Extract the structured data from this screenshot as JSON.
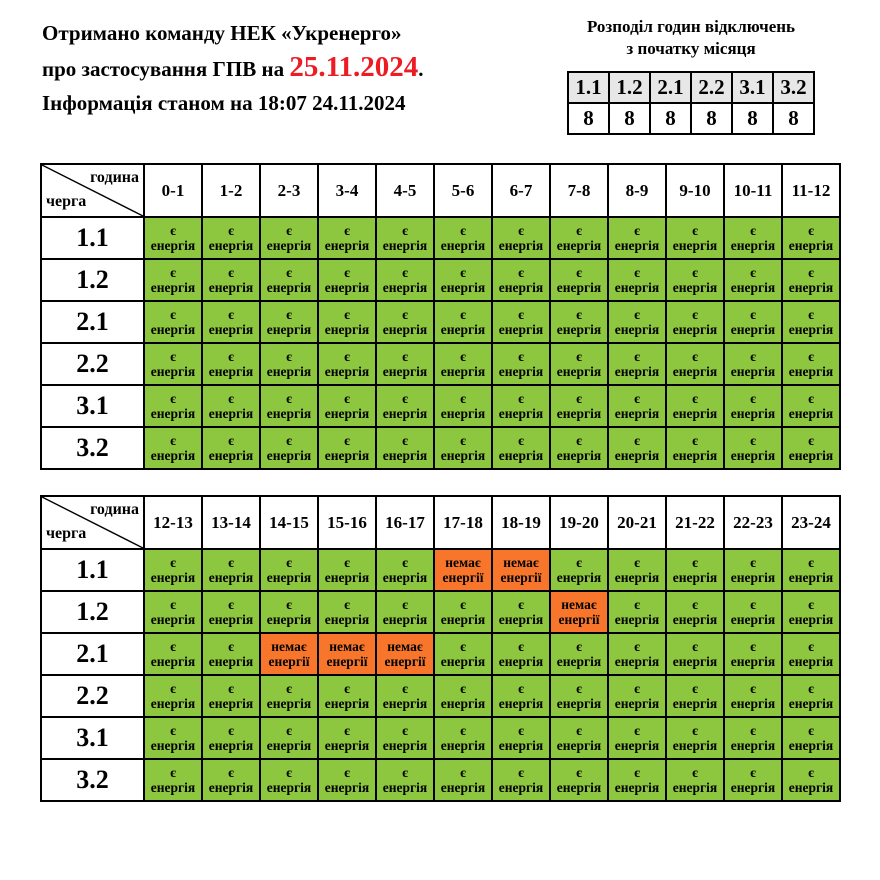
{
  "colors": {
    "power_on": "#8dc63f",
    "power_off": "#f7762b",
    "summary_header_bg": "#e7e7e7",
    "date_red": "#ed1c24",
    "border": "#000000"
  },
  "announcement": {
    "line1": "Отримано команду НЕК «Укренерго»",
    "line2_prefix": "про застосування ГПВ на ",
    "line2_date": "25.11.2024",
    "line2_suffix": ".",
    "line3": "Інформація станом на 18:07 24.11.2024"
  },
  "summary": {
    "title_line1": "Розподіл годин відключень",
    "title_line2": "з початку місяця",
    "queues": [
      "1.1",
      "1.2",
      "2.1",
      "2.2",
      "3.1",
      "3.2"
    ],
    "hours": [
      8,
      8,
      8,
      8,
      8,
      8
    ]
  },
  "legend": {
    "corner_top": "година",
    "corner_bottom": "черга"
  },
  "cell_labels": {
    "on": {
      "line1": "є",
      "line2": "енергія"
    },
    "off": {
      "line1": "немає",
      "line2": "енергії"
    }
  },
  "tables": [
    {
      "hours": [
        "0-1",
        "1-2",
        "2-3",
        "3-4",
        "4-5",
        "5-6",
        "6-7",
        "7-8",
        "8-9",
        "9-10",
        "10-11",
        "11-12"
      ],
      "rows": [
        {
          "queue": "1.1",
          "cells": [
            "on",
            "on",
            "on",
            "on",
            "on",
            "on",
            "on",
            "on",
            "on",
            "on",
            "on",
            "on"
          ]
        },
        {
          "queue": "1.2",
          "cells": [
            "on",
            "on",
            "on",
            "on",
            "on",
            "on",
            "on",
            "on",
            "on",
            "on",
            "on",
            "on"
          ]
        },
        {
          "queue": "2.1",
          "cells": [
            "on",
            "on",
            "on",
            "on",
            "on",
            "on",
            "on",
            "on",
            "on",
            "on",
            "on",
            "on"
          ]
        },
        {
          "queue": "2.2",
          "cells": [
            "on",
            "on",
            "on",
            "on",
            "on",
            "on",
            "on",
            "on",
            "on",
            "on",
            "on",
            "on"
          ]
        },
        {
          "queue": "3.1",
          "cells": [
            "on",
            "on",
            "on",
            "on",
            "on",
            "on",
            "on",
            "on",
            "on",
            "on",
            "on",
            "on"
          ]
        },
        {
          "queue": "3.2",
          "cells": [
            "on",
            "on",
            "on",
            "on",
            "on",
            "on",
            "on",
            "on",
            "on",
            "on",
            "on",
            "on"
          ]
        }
      ]
    },
    {
      "hours": [
        "12-13",
        "13-14",
        "14-15",
        "15-16",
        "16-17",
        "17-18",
        "18-19",
        "19-20",
        "20-21",
        "21-22",
        "22-23",
        "23-24"
      ],
      "rows": [
        {
          "queue": "1.1",
          "cells": [
            "on",
            "on",
            "on",
            "on",
            "on",
            "off",
            "off",
            "on",
            "on",
            "on",
            "on",
            "on"
          ]
        },
        {
          "queue": "1.2",
          "cells": [
            "on",
            "on",
            "on",
            "on",
            "on",
            "on",
            "on",
            "off",
            "on",
            "on",
            "on",
            "on"
          ]
        },
        {
          "queue": "2.1",
          "cells": [
            "on",
            "on",
            "off",
            "off",
            "off",
            "on",
            "on",
            "on",
            "on",
            "on",
            "on",
            "on"
          ]
        },
        {
          "queue": "2.2",
          "cells": [
            "on",
            "on",
            "on",
            "on",
            "on",
            "on",
            "on",
            "on",
            "on",
            "on",
            "on",
            "on"
          ]
        },
        {
          "queue": "3.1",
          "cells": [
            "on",
            "on",
            "on",
            "on",
            "on",
            "on",
            "on",
            "on",
            "on",
            "on",
            "on",
            "on"
          ]
        },
        {
          "queue": "3.2",
          "cells": [
            "on",
            "on",
            "on",
            "on",
            "on",
            "on",
            "on",
            "on",
            "on",
            "on",
            "on",
            "on"
          ]
        }
      ]
    }
  ]
}
